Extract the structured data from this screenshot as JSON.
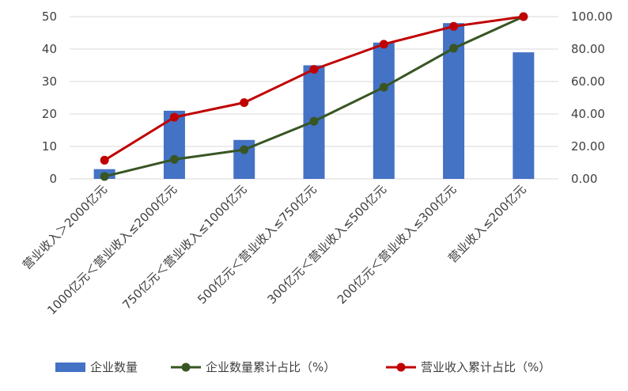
{
  "chart_data": {
    "type": "bar",
    "categories": [
      "营业收入＞2000亿元",
      "1000亿元＜营业收入≤2000亿元",
      "750亿元＜营业收入≤1000亿元",
      "500亿元＜营业收入≤750亿元",
      "300亿元＜营业收入≤500亿元",
      "200亿元＜营业收入≤300亿元",
      "营业收入≤200亿元"
    ],
    "series": [
      {
        "name": "企业数量",
        "kind": "bar",
        "axis": "left",
        "color": "#4472c4",
        "values": [
          3,
          21,
          12,
          35,
          42,
          48,
          39
        ]
      },
      {
        "name": "企业数量累计占比（%）",
        "kind": "line",
        "axis": "right",
        "color": "#375623",
        "values": [
          1.5,
          12.0,
          18.0,
          35.5,
          56.5,
          80.5,
          100.0
        ]
      },
      {
        "name": "营业收入累计占比（%）",
        "kind": "line",
        "axis": "right",
        "color": "#c00000",
        "values": [
          11.5,
          38.0,
          47.0,
          67.5,
          83.0,
          94.0,
          100.0
        ]
      }
    ],
    "y_left": {
      "ylim": [
        0,
        50
      ],
      "ticks": [
        "0",
        "10",
        "20",
        "30",
        "40",
        "50"
      ]
    },
    "y_right": {
      "ylim": [
        0,
        100
      ],
      "ticks": [
        "0.00",
        "20.00",
        "40.00",
        "60.00",
        "80.00",
        "100.00"
      ]
    },
    "grid": true,
    "legend": "bottom"
  }
}
